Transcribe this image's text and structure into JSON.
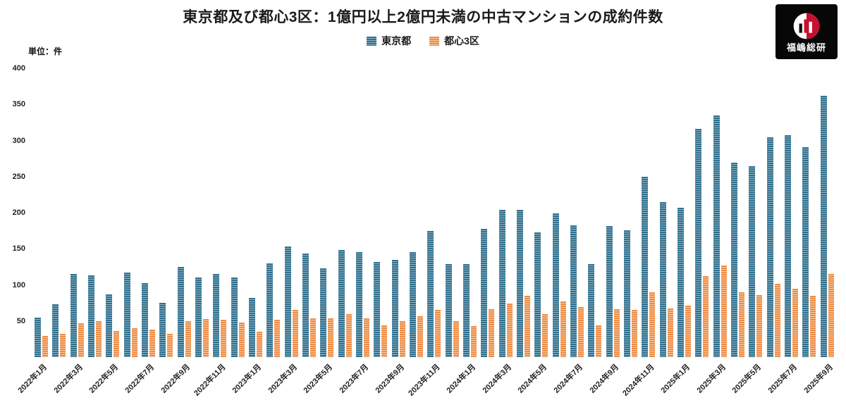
{
  "title": "東京都及び都心3区：1億円以上2億円未満の中古マンションの成約件数",
  "unit_label": "単位：件",
  "logo": {
    "text": "福嶋総研"
  },
  "colors": {
    "tokyo": "#31708e",
    "tokyo_light": "#8db3c4",
    "toshin3ku": "#ee8c45",
    "toshin3ku_light": "#f8cba4"
  },
  "chart_data": {
    "type": "bar",
    "title": "東京都及び都心3区：1億円以上2億円未満の中古マンションの成約件数",
    "xlabel": "",
    "ylabel": "単位：件",
    "ylim": [
      0,
      400
    ],
    "yticks": [
      50,
      100,
      150,
      200,
      250,
      300,
      350,
      400
    ],
    "grid": false,
    "legend_position": "top",
    "tick_every": 2,
    "x": [
      "2022年1月",
      "2022年2月",
      "2022年3月",
      "2022年4月",
      "2022年5月",
      "2022年6月",
      "2022年7月",
      "2022年8月",
      "2022年9月",
      "2022年10月",
      "2022年11月",
      "2022年12月",
      "2023年1月",
      "2023年2月",
      "2023年3月",
      "2023年4月",
      "2023年5月",
      "2023年6月",
      "2023年7月",
      "2023年8月",
      "2023年9月",
      "2023年10月",
      "2023年11月",
      "2023年12月",
      "2024年1月",
      "2024年2月",
      "2024年3月",
      "2024年4月",
      "2024年5月",
      "2024年6月",
      "2024年7月",
      "2024年8月",
      "2024年9月",
      "2024年10月",
      "2024年11月",
      "2024年12月",
      "2025年1月",
      "2025年2月",
      "2025年3月",
      "2025年4月",
      "2025年5月",
      "2025年6月",
      "2025年7月",
      "2025年8月",
      "2025年9月"
    ],
    "series": [
      {
        "name": "東京都",
        "color": "#31708e",
        "color_light": "#8db3c4",
        "values": [
          55,
          73,
          115,
          113,
          87,
          117,
          102,
          75,
          125,
          110,
          115,
          110,
          82,
          130,
          153,
          143,
          123,
          148,
          145,
          132,
          135,
          145,
          175,
          129,
          129,
          178,
          204,
          204,
          173,
          199,
          182,
          129,
          181,
          176,
          250,
          215,
          207,
          316,
          335,
          269,
          264,
          304,
          307,
          291,
          362
        ]
      },
      {
        "name": "都心3区",
        "color": "#ee8c45",
        "color_light": "#f8cba4",
        "values": [
          29,
          32,
          47,
          50,
          36,
          40,
          38,
          32,
          50,
          53,
          52,
          48,
          35,
          52,
          65,
          54,
          54,
          60,
          54,
          44,
          50,
          57,
          65,
          50,
          43,
          66,
          74,
          85,
          60,
          77,
          69,
          44,
          66,
          65,
          90,
          67,
          71,
          112,
          127,
          90,
          86,
          101,
          95,
          85,
          115
        ]
      }
    ]
  }
}
